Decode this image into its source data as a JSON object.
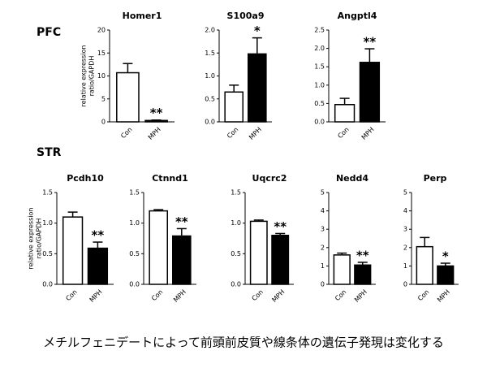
{
  "sections": [
    "PFC",
    "STR"
  ],
  "caption": "メチルフェニデートによって前頭前皮質や線条体の遺伝子発現は変化する",
  "chart_data": [
    {
      "type": "bar",
      "title": "Homer1",
      "y_label": [
        "relative expression",
        "ratio/GAPDH"
      ],
      "categories": [
        "Con",
        "MPH"
      ],
      "values": [
        10.7,
        0.3
      ],
      "errors": [
        2.0,
        0.1
      ],
      "colors": [
        "#ffffff",
        "#000000"
      ],
      "significance": [
        null,
        "**"
      ],
      "ylim": [
        0,
        20
      ],
      "yticks": [
        0,
        5,
        10,
        15,
        20
      ]
    },
    {
      "type": "bar",
      "title": "S100a9",
      "categories": [
        "Con",
        "MPH"
      ],
      "values": [
        0.65,
        1.48
      ],
      "errors": [
        0.15,
        0.35
      ],
      "colors": [
        "#ffffff",
        "#000000"
      ],
      "significance": [
        null,
        "*"
      ],
      "ylim": [
        0,
        2
      ],
      "yticks": [
        {
          "value": 0,
          "label": "0.0"
        },
        0.5,
        {
          "value": 1,
          "label": "1.0"
        },
        1.5,
        {
          "value": 2,
          "label": "2.0"
        }
      ]
    },
    {
      "type": "bar",
      "title": "Angptl4",
      "categories": [
        "Con",
        "MPH"
      ],
      "values": [
        0.47,
        1.62
      ],
      "errors": [
        0.17,
        0.37
      ],
      "colors": [
        "#ffffff",
        "#000000"
      ],
      "significance": [
        null,
        "**"
      ],
      "ylim": [
        0,
        2.5
      ],
      "yticks": [
        {
          "value": 0,
          "label": "0.0"
        },
        0.5,
        {
          "value": 1,
          "label": "1.0"
        },
        1.5,
        {
          "value": 2,
          "label": "2.0"
        },
        2.5
      ]
    },
    {
      "type": "bar",
      "title": "Pcdh10",
      "y_label": [
        "relative expression",
        "ratio/GAPDH"
      ],
      "categories": [
        "Con",
        "MPH"
      ],
      "values": [
        1.1,
        0.59
      ],
      "errors": [
        0.08,
        0.1
      ],
      "colors": [
        "#ffffff",
        "#000000"
      ],
      "significance": [
        null,
        "**"
      ],
      "ylim": [
        0,
        1.5
      ],
      "yticks": [
        {
          "value": 0,
          "label": "0.0"
        },
        0.5,
        {
          "value": 1,
          "label": "1.0"
        },
        1.5
      ]
    },
    {
      "type": "bar",
      "title": "Ctnnd1",
      "categories": [
        "Con",
        "MPH"
      ],
      "values": [
        1.2,
        0.79
      ],
      "errors": [
        0.02,
        0.12
      ],
      "colors": [
        "#ffffff",
        "#000000"
      ],
      "significance": [
        null,
        "**"
      ],
      "ylim": [
        0,
        1.5
      ],
      "yticks": [
        {
          "value": 0,
          "label": "0.0"
        },
        0.5,
        {
          "value": 1,
          "label": "1.0"
        },
        1.5
      ]
    },
    {
      "type": "bar",
      "title": "Uqcrc2",
      "categories": [
        "Con",
        "MPH"
      ],
      "values": [
        1.03,
        0.8
      ],
      "errors": [
        0.02,
        0.03
      ],
      "colors": [
        "#ffffff",
        "#000000"
      ],
      "significance": [
        null,
        "**"
      ],
      "ylim": [
        0,
        1.5
      ],
      "yticks": [
        {
          "value": 0,
          "label": "0.0"
        },
        0.5,
        {
          "value": 1,
          "label": "1.0"
        },
        1.5
      ]
    },
    {
      "type": "bar",
      "title": "Nedd4",
      "categories": [
        "Con",
        "MPH"
      ],
      "values": [
        1.6,
        1.05
      ],
      "errors": [
        0.1,
        0.15
      ],
      "colors": [
        "#ffffff",
        "#000000"
      ],
      "significance": [
        null,
        "**"
      ],
      "ylim": [
        0,
        5
      ],
      "yticks": [
        0,
        1,
        2,
        3,
        4,
        5
      ]
    },
    {
      "type": "bar",
      "title": "Perp",
      "categories": [
        "Con",
        "MPH"
      ],
      "values": [
        2.05,
        1.0
      ],
      "errors": [
        0.5,
        0.15
      ],
      "colors": [
        "#ffffff",
        "#000000"
      ],
      "significance": [
        null,
        "*"
      ],
      "ylim": [
        0,
        5
      ],
      "yticks": [
        0,
        1,
        2,
        3,
        4,
        5
      ]
    }
  ]
}
